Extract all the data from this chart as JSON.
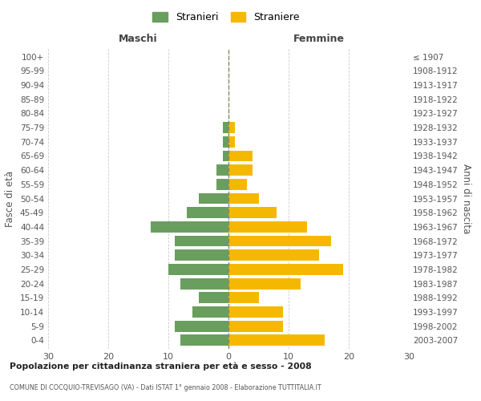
{
  "age_groups": [
    "0-4",
    "5-9",
    "10-14",
    "15-19",
    "20-24",
    "25-29",
    "30-34",
    "35-39",
    "40-44",
    "45-49",
    "50-54",
    "55-59",
    "60-64",
    "65-69",
    "70-74",
    "75-79",
    "80-84",
    "85-89",
    "90-94",
    "95-99",
    "100+"
  ],
  "birth_years": [
    "2003-2007",
    "1998-2002",
    "1993-1997",
    "1988-1992",
    "1983-1987",
    "1978-1982",
    "1973-1977",
    "1968-1972",
    "1963-1967",
    "1958-1962",
    "1953-1957",
    "1948-1952",
    "1943-1947",
    "1938-1942",
    "1933-1937",
    "1928-1932",
    "1923-1927",
    "1918-1922",
    "1913-1917",
    "1908-1912",
    "≤ 1907"
  ],
  "males": [
    8,
    9,
    6,
    5,
    8,
    10,
    9,
    9,
    13,
    7,
    5,
    2,
    2,
    1,
    1,
    1,
    0,
    0,
    0,
    0,
    0
  ],
  "females": [
    16,
    9,
    9,
    5,
    12,
    19,
    15,
    17,
    13,
    8,
    5,
    3,
    4,
    4,
    1,
    1,
    0,
    0,
    0,
    0,
    0
  ],
  "male_color": "#6a9e5e",
  "female_color": "#f5b800",
  "background_color": "#ffffff",
  "grid_color": "#cccccc",
  "title1": "Popolazione per cittadinanza straniera per età e sesso - 2008",
  "title2": "COMUNE DI COCQUIO-TREVISAGO (VA) - Dati ISTAT 1° gennaio 2008 - Elaborazione TUTTITALIA.IT",
  "xlabel_left": "Maschi",
  "xlabel_right": "Femmine",
  "ylabel_left": "Fasce di età",
  "ylabel_right": "Anni di nascita",
  "legend_male": "Stranieri",
  "legend_female": "Straniere",
  "xlim": 30
}
